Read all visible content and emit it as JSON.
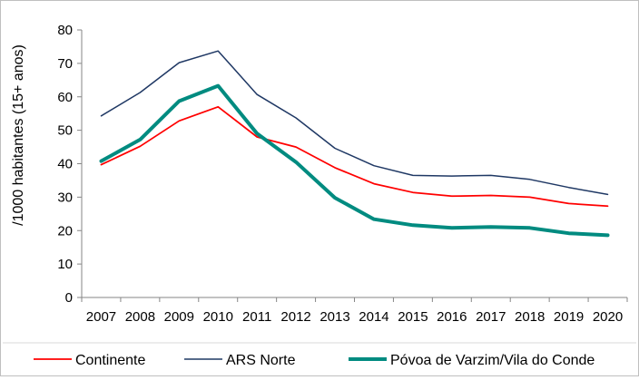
{
  "chart_data": {
    "type": "line",
    "title": "",
    "xlabel": "",
    "ylabel": "/1000 habitantes (15+ anos)",
    "ylim": [
      0,
      80
    ],
    "yticks": [
      0,
      10,
      20,
      30,
      40,
      50,
      60,
      70,
      80
    ],
    "grid": false,
    "legend_position": "bottom",
    "categories": [
      "2007",
      "2008",
      "2009",
      "2010",
      "2011",
      "2012",
      "2013",
      "2014",
      "2015",
      "2016",
      "2017",
      "2018",
      "2019",
      "2020"
    ],
    "series": [
      {
        "name": "Continente",
        "color": "#ff0000",
        "values": [
          39.7,
          45.2,
          52.8,
          57.0,
          48.0,
          45.0,
          38.8,
          34.0,
          31.4,
          30.3,
          30.5,
          30.0,
          28.1,
          27.3
        ]
      },
      {
        "name": "ARS Norte",
        "color": "#1f3864",
        "values": [
          54.3,
          61.3,
          70.2,
          73.7,
          60.7,
          53.7,
          44.6,
          39.4,
          36.5,
          36.3,
          36.5,
          35.3,
          32.9,
          30.8
        ]
      },
      {
        "name": "Póvoa de Varzim/Vila do Conde",
        "color": "#008b80",
        "values": [
          40.8,
          47.2,
          58.7,
          63.3,
          49.0,
          40.5,
          29.8,
          23.4,
          21.6,
          20.8,
          21.1,
          20.8,
          19.2,
          18.6
        ]
      }
    ]
  }
}
